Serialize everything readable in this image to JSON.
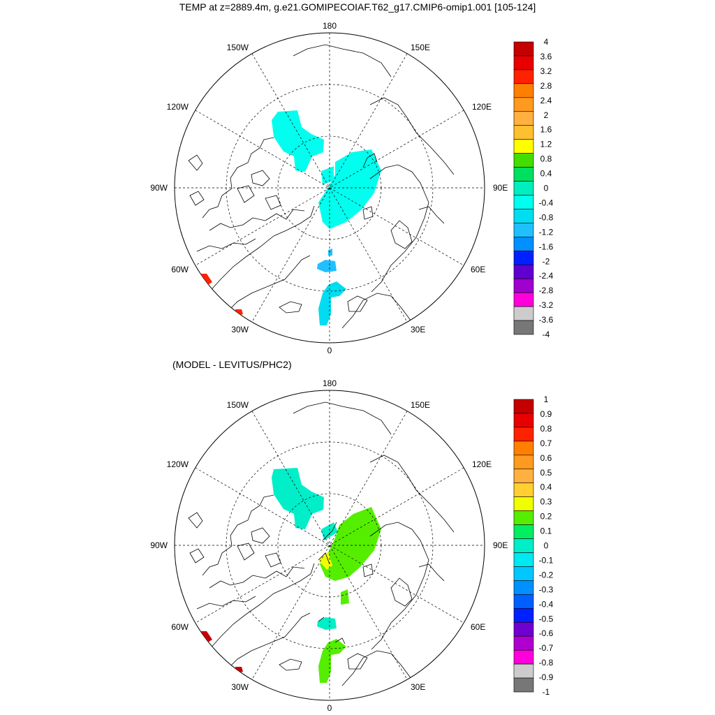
{
  "title": "TEMP at z=2889.4m, g.e21.GOMIPECOIAF.T62_g17.CMIP6-omip1.001 [105-124]",
  "subtitle": "(MODEL - LEVITUS/PHC2)",
  "longitude_labels": [
    "180",
    "150E",
    "120E",
    "90E",
    "60E",
    "30E",
    "0",
    "30W",
    "60W",
    "90W",
    "120W",
    "150W"
  ],
  "panels": [
    {
      "id": "temp",
      "colorbar": {
        "labels": [
          "4",
          "3.6",
          "3.2",
          "2.8",
          "2.4",
          "2",
          "1.6",
          "1.2",
          "0.8",
          "0.4",
          "0",
          "-0.4",
          "-0.8",
          "-1.2",
          "-1.6",
          "-2",
          "-2.4",
          "-2.8",
          "-3.2",
          "-3.6",
          "-4"
        ],
        "colors": [
          "#c40000",
          "#e80000",
          "#ff2200",
          "#ff8000",
          "#ff9a20",
          "#ffb040",
          "#ffc030",
          "#ffff00",
          "#44dd00",
          "#00e060",
          "#00eec0",
          "#00ffee",
          "#00ddf0",
          "#20c0ff",
          "#0090ff",
          "#0020ff",
          "#6000d0",
          "#a000d0",
          "#ff00dd",
          "#cccccc",
          "#777777"
        ]
      },
      "fields": {
        "west_basin": "#00ffee",
        "east_basin": "#00ffee",
        "fram_strait": "#20c0ff",
        "nordic_seas": "#00ddf0",
        "baffin_spot": "#ff2200"
      }
    },
    {
      "id": "diff",
      "colorbar": {
        "labels": [
          "1",
          "0.9",
          "0.8",
          "0.7",
          "0.6",
          "0.5",
          "0.4",
          "0.3",
          "0.2",
          "0.1",
          "0",
          "-0.1",
          "-0.2",
          "-0.3",
          "-0.4",
          "-0.5",
          "-0.6",
          "-0.7",
          "-0.8",
          "-0.9",
          "-1"
        ],
        "colors": [
          "#c40000",
          "#e80000",
          "#ff2200",
          "#ff8000",
          "#ff9a20",
          "#ffb040",
          "#ffd030",
          "#f0ff00",
          "#55ee00",
          "#00ee60",
          "#00eec8",
          "#00e8f0",
          "#00c8ff",
          "#0090ff",
          "#0060ff",
          "#0020ff",
          "#7000d0",
          "#b000d0",
          "#ff00dd",
          "#cccccc",
          "#777777"
        ]
      },
      "fields": {
        "west_basin": "#00eec8",
        "east_basin": "#55ee00",
        "east_basin_edge": "#f0ff00",
        "fram_strait": "#00eec8",
        "nordic_seas": "#55ee00",
        "baffin_spot": "#c40000"
      }
    }
  ]
}
